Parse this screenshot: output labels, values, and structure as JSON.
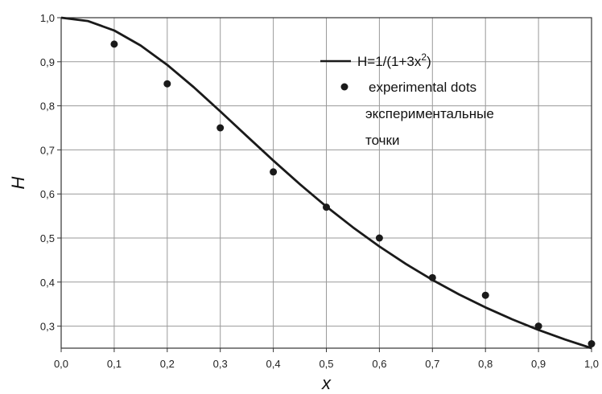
{
  "chart_data": {
    "type": "line",
    "xlabel": "x",
    "ylabel": "H",
    "xlim": [
      0.0,
      1.0
    ],
    "ylim": [
      0.25,
      1.0
    ],
    "grid": true,
    "x_ticks": [
      "0,0",
      "0,1",
      "0,2",
      "0,3",
      "0,4",
      "0,5",
      "0,6",
      "0,7",
      "0,8",
      "0,9",
      "1,0"
    ],
    "y_ticks": [
      "0,3",
      "0,4",
      "0,5",
      "0,6",
      "0,7",
      "0,8",
      "0,9",
      "1,0"
    ],
    "legend_position": "top-right",
    "series": [
      {
        "name": "H=1/(1+3x²)",
        "kind": "line",
        "color": "#1a1a1a",
        "x": [
          0.0,
          0.05,
          0.1,
          0.15,
          0.2,
          0.25,
          0.3,
          0.35,
          0.4,
          0.45,
          0.5,
          0.55,
          0.6,
          0.65,
          0.7,
          0.75,
          0.8,
          0.85,
          0.9,
          0.95,
          1.0
        ],
        "y": [
          1.0,
          0.9926,
          0.9709,
          0.9368,
          0.8929,
          0.8421,
          0.7874,
          0.7313,
          0.6757,
          0.6221,
          0.5714,
          0.5242,
          0.4808,
          0.441,
          0.4049,
          0.3721,
          0.3425,
          0.3157,
          0.2915,
          0.2697,
          0.25
        ]
      },
      {
        "name": "experimental dots",
        "name_line2": "экспериментальные",
        "name_line3": "точки",
        "kind": "scatter",
        "color": "#1a1a1a",
        "x": [
          0.1,
          0.2,
          0.3,
          0.4,
          0.5,
          0.6,
          0.7,
          0.8,
          0.9,
          1.0
        ],
        "y": [
          0.94,
          0.85,
          0.75,
          0.65,
          0.57,
          0.5,
          0.41,
          0.37,
          0.3,
          0.26
        ]
      }
    ]
  }
}
